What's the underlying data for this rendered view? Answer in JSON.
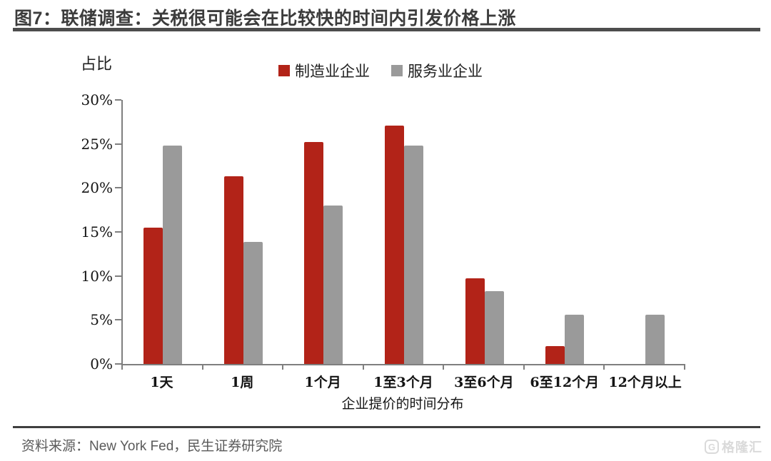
{
  "header": {
    "title": "图7：联储调查：关税很可能会在比较快的时间内引发价格上涨"
  },
  "chart_data": {
    "type": "bar",
    "title": "联储调查：关税很可能会在比较快的时间内引发价格上涨",
    "unit_label": "占比",
    "xlabel": "企业提价的时间分布",
    "ylabel": "占比",
    "ylim": [
      0,
      30
    ],
    "ytick_step": 5,
    "ytick_suffix": "%",
    "grid": false,
    "legend_position": "top",
    "categories": [
      "1天",
      "1周",
      "1个月",
      "1至3个月",
      "3至6个月",
      "6至12个月",
      "12个月以上"
    ],
    "series": [
      {
        "name": "制造业企业",
        "color": "#B22318",
        "values": [
          15.5,
          21.3,
          25.2,
          27.1,
          9.7,
          2.0,
          0.0
        ]
      },
      {
        "name": "服务业企业",
        "color": "#9A9A9A",
        "values": [
          24.8,
          13.9,
          18.0,
          24.8,
          8.3,
          5.6,
          5.6
        ]
      }
    ]
  },
  "footer": {
    "source": "资料来源：New York Fed，民生证券研究院",
    "watermark": "格隆汇",
    "watermark_icon_letter": "G"
  }
}
